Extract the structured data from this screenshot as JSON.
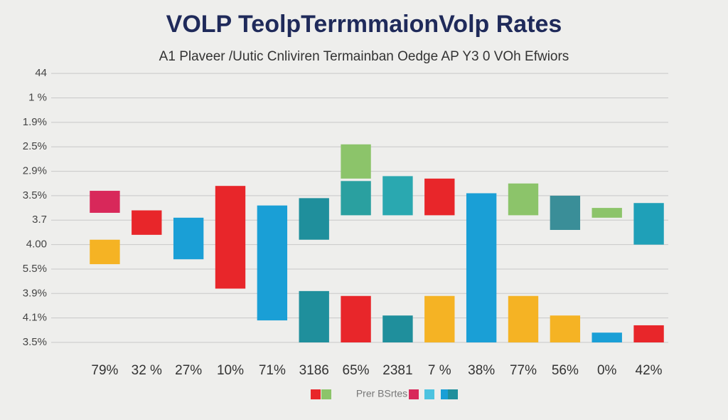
{
  "chart_data": {
    "type": "range_bar",
    "title": "VOLP TeolpTerrmmaionVolp Rates",
    "subtitle": "A1  Plaveer /Uutic Cnliviren Termainban Oedge  AP Y3 0 VOh Efwiors",
    "ylim": [
      0,
      11.5
    ],
    "yticks": [
      {
        "value": 0,
        "label": "3.5%"
      },
      {
        "value": 1,
        "label": "4.1%"
      },
      {
        "value": 2,
        "label": "3.9%"
      },
      {
        "value": 3,
        "label": "5.5%"
      },
      {
        "value": 4,
        "label": "4.00"
      },
      {
        "value": 5,
        "label": "3.7"
      },
      {
        "value": 6,
        "label": "3.5%"
      },
      {
        "value": 7,
        "label": "2.9%"
      },
      {
        "value": 8,
        "label": "2.5%"
      },
      {
        "value": 9,
        "label": "1.9%"
      },
      {
        "value": 10,
        "label": "1 %"
      },
      {
        "value": 11,
        "label": "44"
      }
    ],
    "grid": true,
    "columns": [
      {
        "label": "79%",
        "bars": [
          {
            "low": 5.3,
            "high": 6.2,
            "color": "#d8285a"
          },
          {
            "low": 3.2,
            "high": 4.2,
            "color": "#f5b324"
          }
        ]
      },
      {
        "label": "32 %",
        "bars": [
          {
            "low": 4.4,
            "high": 5.4,
            "color": "#e8262a"
          }
        ]
      },
      {
        "label": "27%",
        "bars": [
          {
            "low": 3.4,
            "high": 5.1,
            "color": "#1a9fd6"
          }
        ]
      },
      {
        "label": "10%",
        "bars": [
          {
            "low": 2.2,
            "high": 6.4,
            "color": "#e8262a"
          }
        ]
      },
      {
        "label": "71%",
        "bars": [
          {
            "low": 0.9,
            "high": 5.6,
            "color": "#1a9fd6"
          }
        ]
      },
      {
        "label": "3186",
        "bars": [
          {
            "low": 4.2,
            "high": 5.9,
            "color": "#1f8f9c"
          },
          {
            "low": 0,
            "high": 2.1,
            "color": "#1f8f9c"
          }
        ]
      },
      {
        "label": "65%",
        "bars": [
          {
            "low": 6.7,
            "high": 8.1,
            "color": "#8cc46a"
          },
          {
            "low": 5.2,
            "high": 6.6,
            "color": "#2aa0a0"
          },
          {
            "low": 0,
            "high": 1.9,
            "color": "#e8262a"
          }
        ]
      },
      {
        "label": "2381",
        "bars": [
          {
            "low": 5.2,
            "high": 6.8,
            "color": "#2aa8b0"
          },
          {
            "low": 0,
            "high": 1.1,
            "color": "#1f8f9c"
          }
        ]
      },
      {
        "label": "7 %",
        "bars": [
          {
            "low": 5.2,
            "high": 6.7,
            "color": "#e8262a"
          },
          {
            "low": 0,
            "high": 1.9,
            "color": "#f5b324"
          }
        ]
      },
      {
        "label": "38%",
        "bars": [
          {
            "low": 0,
            "high": 6.1,
            "color": "#1a9fd6"
          }
        ]
      },
      {
        "label": "77%",
        "bars": [
          {
            "low": 5.2,
            "high": 6.5,
            "color": "#8cc46a"
          },
          {
            "low": 0,
            "high": 1.9,
            "color": "#f5b324"
          }
        ]
      },
      {
        "label": "56%",
        "bars": [
          {
            "low": 4.6,
            "high": 6.0,
            "color": "#3a8e98"
          },
          {
            "low": 0,
            "high": 1.1,
            "color": "#f5b324"
          }
        ]
      },
      {
        "label": "0%",
        "bars": [
          {
            "low": 5.1,
            "high": 5.5,
            "color": "#8cc46a"
          },
          {
            "low": 0,
            "high": 0.4,
            "color": "#1a9fd6"
          }
        ]
      },
      {
        "label": "42%",
        "bars": [
          {
            "low": 4.0,
            "high": 5.7,
            "color": "#1fa0b8"
          },
          {
            "low": 0,
            "high": 0.7,
            "color": "#e8262a"
          }
        ]
      }
    ],
    "legend": {
      "label": "Prer BSrtes",
      "colors": [
        "#e8262a",
        "#8cc46a",
        "#d8285a",
        "#4cc3e0",
        "#1a9fd6",
        "#1f8f9c"
      ]
    }
  }
}
